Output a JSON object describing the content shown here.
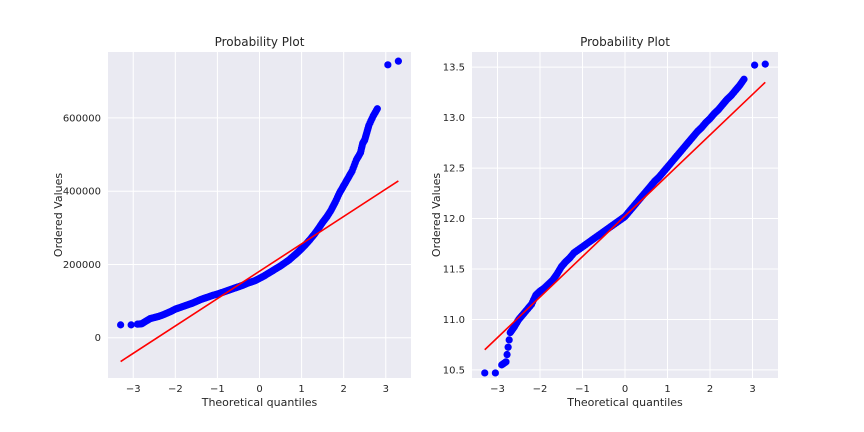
{
  "chart_data": [
    {
      "type": "scatter",
      "title": "Probability Plot",
      "xlabel": "Theoretical quantiles",
      "ylabel": "Ordered Values",
      "xlim": [
        -3.6,
        3.6
      ],
      "ylim": [
        -110000,
        780000
      ],
      "xticks": [
        -3,
        -2,
        -1,
        0,
        1,
        2,
        3
      ],
      "xtick_labels": [
        "−3",
        "−2",
        "−1",
        "0",
        "1",
        "2",
        "3"
      ],
      "yticks": [
        0,
        200000,
        400000,
        600000
      ],
      "ytick_labels": [
        "0",
        "200000",
        "400000",
        "600000"
      ],
      "grid": true,
      "series": [
        {
          "kind": "points",
          "color": "#0000ff",
          "x": [
            -3.3,
            -3.05,
            -2.9,
            -2.8,
            -2.7,
            -2.6,
            -2.5,
            -2.4,
            -2.3,
            -2.2,
            -2.1,
            -2.0,
            -1.9,
            -1.8,
            -1.7,
            -1.6,
            -1.5,
            -1.4,
            -1.3,
            -1.2,
            -1.1,
            -1.0,
            -0.9,
            -0.8,
            -0.7,
            -0.6,
            -0.5,
            -0.4,
            -0.3,
            -0.2,
            -0.1,
            0.0,
            0.1,
            0.2,
            0.3,
            0.4,
            0.5,
            0.6,
            0.7,
            0.8,
            0.9,
            1.0,
            1.1,
            1.2,
            1.3,
            1.4,
            1.5,
            1.6,
            1.7,
            1.8,
            1.9,
            2.0,
            2.1,
            2.2,
            2.3,
            2.4,
            2.45,
            2.5,
            2.55,
            2.6,
            2.7,
            2.8,
            3.05,
            3.3
          ],
          "y": [
            35000,
            35000,
            37000,
            38000,
            45000,
            52000,
            55000,
            58000,
            62000,
            67000,
            72000,
            78000,
            82000,
            86000,
            90000,
            94000,
            99000,
            104000,
            108000,
            112000,
            116000,
            119000,
            123000,
            127000,
            131000,
            135000,
            139000,
            143000,
            148000,
            152000,
            156000,
            162000,
            168000,
            175000,
            182000,
            189000,
            196000,
            204000,
            212000,
            222000,
            232000,
            243000,
            255000,
            268000,
            282000,
            298000,
            315000,
            330000,
            348000,
            370000,
            395000,
            415000,
            435000,
            455000,
            485000,
            505000,
            530000,
            540000,
            560000,
            580000,
            605000,
            625000,
            745000,
            755000
          ]
        },
        {
          "kind": "line",
          "color": "#ff0000",
          "x": [
            -3.3,
            3.3
          ],
          "y": [
            -65000,
            428000
          ]
        }
      ]
    },
    {
      "type": "scatter",
      "title": "Probability Plot",
      "xlabel": "Theoretical quantiles",
      "ylabel": "Ordered Values",
      "xlim": [
        -3.6,
        3.6
      ],
      "ylim": [
        10.42,
        13.65
      ],
      "xticks": [
        -3,
        -2,
        -1,
        0,
        1,
        2,
        3
      ],
      "xtick_labels": [
        "−3",
        "−2",
        "−1",
        "0",
        "1",
        "2",
        "3"
      ],
      "yticks": [
        10.5,
        11.0,
        11.5,
        12.0,
        12.5,
        13.0,
        13.5
      ],
      "ytick_labels": [
        "10.5",
        "11.0",
        "11.5",
        "12.0",
        "12.5",
        "13.0",
        "13.5"
      ],
      "grid": true,
      "series": [
        {
          "kind": "points",
          "color": "#0000ff",
          "x": [
            -3.3,
            -3.05,
            -2.9,
            -2.8,
            -2.7,
            -2.6,
            -2.5,
            -2.4,
            -2.3,
            -2.2,
            -2.1,
            -2.0,
            -1.9,
            -1.8,
            -1.7,
            -1.6,
            -1.5,
            -1.4,
            -1.3,
            -1.2,
            -1.1,
            -1.0,
            -0.9,
            -0.8,
            -0.7,
            -0.6,
            -0.5,
            -0.4,
            -0.3,
            -0.2,
            -0.1,
            0.0,
            0.1,
            0.2,
            0.3,
            0.4,
            0.5,
            0.6,
            0.7,
            0.8,
            0.9,
            1.0,
            1.1,
            1.2,
            1.3,
            1.4,
            1.5,
            1.6,
            1.7,
            1.8,
            1.9,
            2.0,
            2.1,
            2.2,
            2.3,
            2.4,
            2.5,
            2.6,
            2.7,
            2.8,
            3.05,
            3.3
          ],
          "y": [
            10.47,
            10.47,
            10.55,
            10.58,
            10.87,
            10.93,
            11.0,
            11.05,
            11.1,
            11.15,
            11.24,
            11.28,
            11.31,
            11.35,
            11.39,
            11.45,
            11.52,
            11.57,
            11.61,
            11.66,
            11.69,
            11.72,
            11.75,
            11.78,
            11.81,
            11.84,
            11.87,
            11.9,
            11.93,
            11.96,
            11.99,
            12.02,
            12.07,
            12.12,
            12.17,
            12.22,
            12.27,
            12.32,
            12.37,
            12.41,
            12.46,
            12.51,
            12.56,
            12.61,
            12.66,
            12.71,
            12.76,
            12.81,
            12.86,
            12.9,
            12.95,
            12.99,
            13.04,
            13.08,
            13.13,
            13.18,
            13.22,
            13.27,
            13.32,
            13.38,
            13.52,
            13.53
          ]
        },
        {
          "kind": "line",
          "color": "#ff0000",
          "x": [
            -3.3,
            3.3
          ],
          "y": [
            10.7,
            13.35
          ]
        }
      ]
    }
  ]
}
